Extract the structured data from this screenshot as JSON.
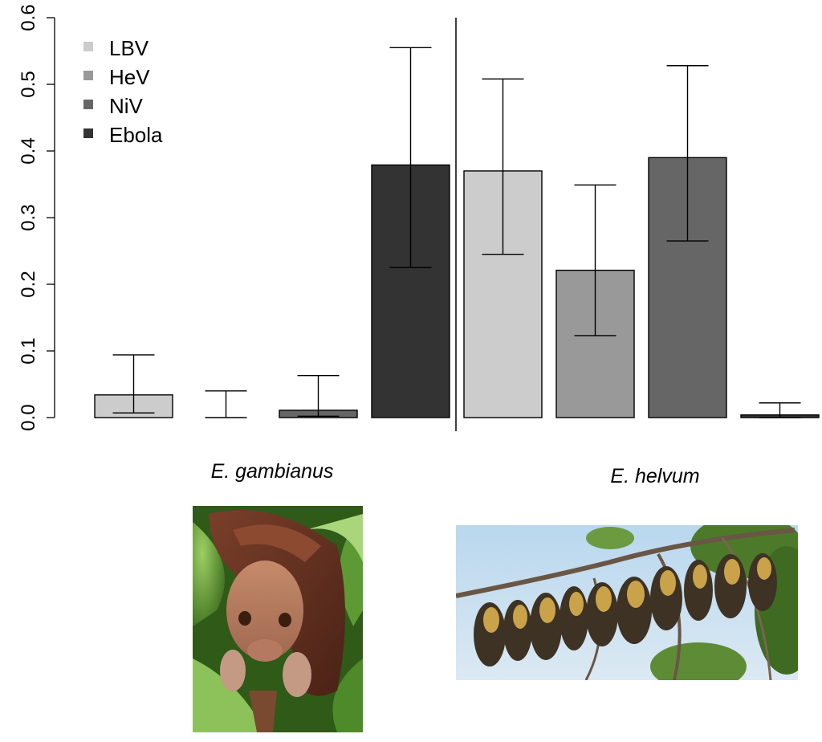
{
  "chart_data": {
    "type": "bar",
    "title": "",
    "xlabel": "",
    "ylabel": "",
    "ylim": [
      0,
      0.6
    ],
    "yticks": [
      "0.0",
      "0.1",
      "0.2",
      "0.3",
      "0.4",
      "0.5",
      "0.6"
    ],
    "legend": {
      "placement": "top-left",
      "entries": [
        {
          "name": "LBV",
          "color": "#cccccc"
        },
        {
          "name": "HeV",
          "color": "#999999"
        },
        {
          "name": "NiV",
          "color": "#666666"
        },
        {
          "name": "Ebola",
          "color": "#333333"
        }
      ]
    },
    "groups": [
      {
        "label": "E. gambianus",
        "bars": [
          {
            "series": "LBV",
            "value": 0.034,
            "ci": [
              0.007,
              0.094
            ]
          },
          {
            "series": "HeV",
            "value": 0.0,
            "ci": [
              0.0,
              0.04
            ]
          },
          {
            "series": "NiV",
            "value": 0.011,
            "ci": [
              0.002,
              0.063
            ]
          },
          {
            "series": "Ebola",
            "value": 0.379,
            "ci": [
              0.225,
              0.555
            ]
          }
        ]
      },
      {
        "label": "E. helvum",
        "bars": [
          {
            "series": "LBV",
            "value": 0.37,
            "ci": [
              0.245,
              0.508
            ]
          },
          {
            "series": "HeV",
            "value": 0.221,
            "ci": [
              0.123,
              0.349
            ]
          },
          {
            "series": "NiV",
            "value": 0.39,
            "ci": [
              0.265,
              0.528
            ]
          },
          {
            "series": "Ebola",
            "value": 0.004,
            "ci": [
              0.0,
              0.022
            ]
          }
        ]
      }
    ]
  }
}
